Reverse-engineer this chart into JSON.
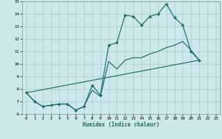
{
  "xlabel": "Humidex (Indice chaleur)",
  "bg_color": "#cce8ea",
  "grid_color": "#a8d0d4",
  "line_color": "#1e6e6a",
  "ylim": [
    6,
    15
  ],
  "xlim": [
    -0.5,
    23.5
  ],
  "yticks": [
    6,
    7,
    8,
    9,
    10,
    11,
    12,
    13,
    14,
    15
  ],
  "xticks": [
    0,
    1,
    2,
    3,
    4,
    5,
    6,
    7,
    8,
    9,
    10,
    11,
    12,
    13,
    14,
    15,
    16,
    17,
    18,
    19,
    20,
    21,
    22,
    23
  ],
  "line1_x": [
    0,
    1,
    2,
    3,
    4,
    5,
    6,
    7,
    8,
    9,
    10,
    11,
    12,
    13,
    14,
    15,
    16,
    17,
    18,
    19,
    20,
    21
  ],
  "line1_y": [
    7.7,
    7.0,
    6.6,
    6.7,
    6.8,
    6.8,
    6.3,
    6.6,
    8.3,
    7.5,
    11.5,
    11.7,
    13.9,
    13.8,
    13.1,
    13.8,
    14.0,
    14.8,
    13.7,
    13.1,
    11.0,
    10.3
  ],
  "line2_x": [
    0,
    21
  ],
  "line2_y": [
    7.7,
    10.3
  ],
  "line3_x": [
    0,
    1,
    2,
    3,
    4,
    5,
    6,
    7,
    8,
    9,
    10,
    11,
    12,
    13,
    14,
    15,
    16,
    17,
    18,
    19,
    20,
    21
  ],
  "line3_y": [
    7.7,
    7.0,
    6.6,
    6.7,
    6.8,
    6.8,
    6.3,
    6.6,
    7.9,
    7.4,
    10.2,
    9.6,
    10.3,
    10.5,
    10.5,
    10.8,
    11.0,
    11.3,
    11.5,
    11.8,
    11.1,
    10.3
  ]
}
